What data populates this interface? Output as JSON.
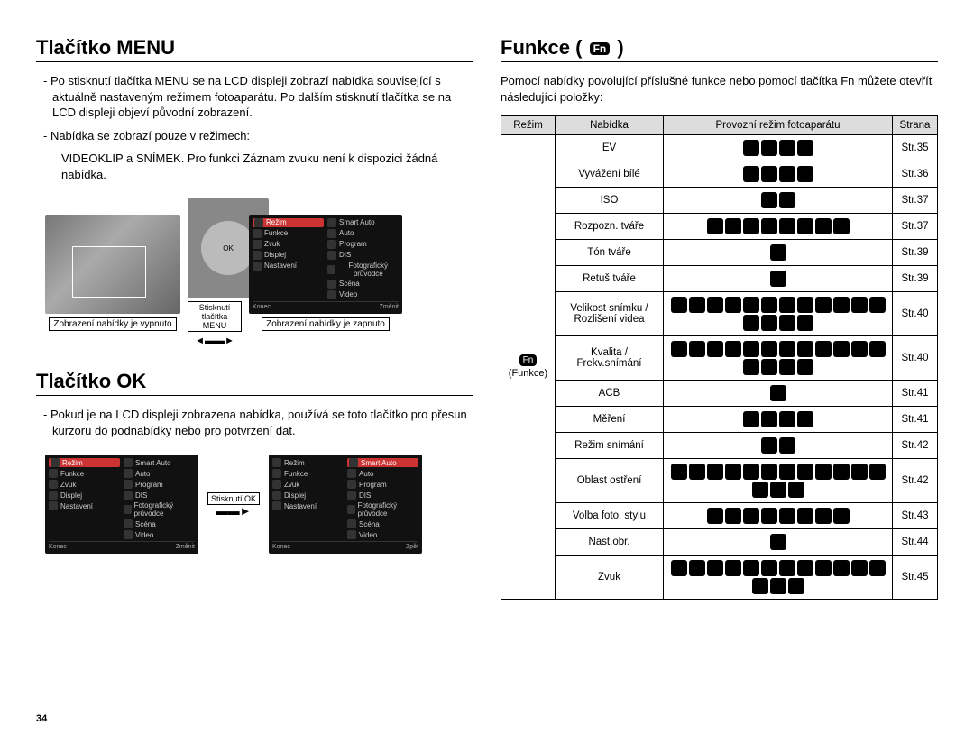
{
  "page_number": "34",
  "left": {
    "section1_title": "Tlačítko MENU",
    "section1_p1": "- Po stisknutí tlačítka MENU se na LCD displeji zobrazí nabídka související s aktuálně nastaveným režimem fotoaparátu. Po dalším stisknutí tlačítka se na LCD displeji objeví původní zobrazení.",
    "section1_p2": "- Nabídka se zobrazí pouze v režimech:",
    "section1_p3": "VIDEOKLIP a SNÍMEK. Pro funkci Záznam zvuku není k dispozici žádná nabídka.",
    "caption_off": "Zobrazení nabídky je vypnuto",
    "caption_on": "Zobrazení nabídky je zapnuto",
    "arrow_label": "Stisknutí tlačítka MENU",
    "section2_title": "Tlačítko OK",
    "section2_p1": "- Pokud je na LCD displeji zobrazena nabídka, používá se toto tlačítko pro přesun kurzoru do podnabídky nebo pro potvrzení dat.",
    "ok_label": "Stisknutí OK",
    "menu_items_left": [
      "Režim",
      "Funkce",
      "Zvuk",
      "Displej",
      "Nastavení"
    ],
    "menu_items_right": [
      "Smart Auto",
      "Auto",
      "Program",
      "DIS",
      "Fotografický průvodce",
      "Scéna",
      "Video"
    ],
    "menu_foot_left": "Konec",
    "menu_foot_right_change": "Změnit",
    "menu_foot_right_back": "Zpět"
  },
  "right": {
    "title_prefix": "Funkce (",
    "title_suffix": ")",
    "fn_label": "Fn",
    "intro": "Pomocí nabídky povolující příslušné funkce nebo pomocí tlačítka Fn můžete otevřít následující položky:",
    "headers": [
      "Režim",
      "Nabídka",
      "Provozní režim fotoaparátu",
      "Strana"
    ],
    "mode_cell": "(Funkce)",
    "rows": [
      {
        "menu": "EV",
        "icons": 4,
        "page": "Str.35"
      },
      {
        "menu": "Vyvážení bílé",
        "icons": 4,
        "page": "Str.36"
      },
      {
        "menu": "ISO",
        "icons": 2,
        "page": "Str.37"
      },
      {
        "menu": "Rozpozn. tváře",
        "icons": 8,
        "page": "Str.37"
      },
      {
        "menu": "Tón tváře",
        "icons": 1,
        "page": "Str.39"
      },
      {
        "menu": "Retuš tváře",
        "icons": 1,
        "page": "Str.39"
      },
      {
        "menu": "Velikost snímku / Rozlišení videa",
        "icons": 16,
        "page": "Str.40"
      },
      {
        "menu": "Kvalita / Frekv.snímání",
        "icons": 16,
        "page": "Str.40"
      },
      {
        "menu": "ACB",
        "icons": 1,
        "page": "Str.41"
      },
      {
        "menu": "Měření",
        "icons": 4,
        "page": "Str.41"
      },
      {
        "menu": "Režim snímání",
        "icons": 2,
        "page": "Str.42"
      },
      {
        "menu": "Oblast ostření",
        "icons": 15,
        "page": "Str.42"
      },
      {
        "menu": "Volba foto. stylu",
        "icons": 8,
        "page": "Str.43"
      },
      {
        "menu": "Nast.obr.",
        "icons": 1,
        "page": "Str.44"
      },
      {
        "menu": "Zvuk",
        "icons": 15,
        "page": "Str.45"
      }
    ]
  }
}
